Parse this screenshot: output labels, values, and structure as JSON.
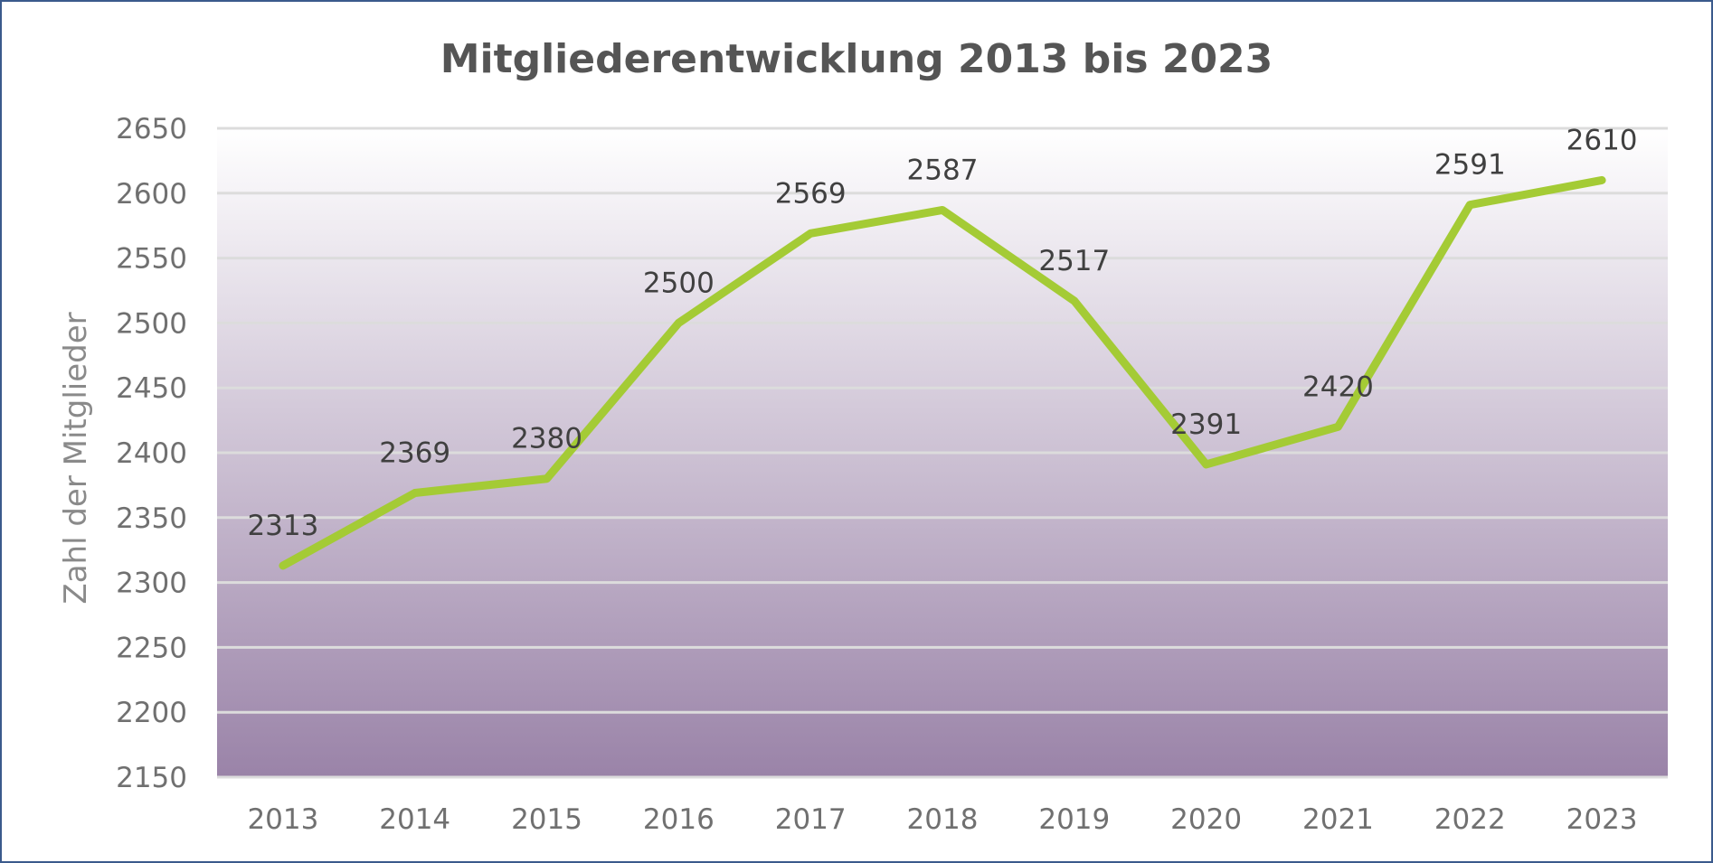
{
  "chart_data": {
    "type": "line",
    "title": "Mitgliederentwicklung 2013 bis 2023",
    "xlabel": "",
    "ylabel": "Zahl der Mitglieder",
    "categories": [
      "2013",
      "2014",
      "2015",
      "2016",
      "2017",
      "2018",
      "2019",
      "2020",
      "2021",
      "2022",
      "2023"
    ],
    "series": [
      {
        "values": [
          2313,
          2369,
          2380,
          2500,
          2569,
          2587,
          2517,
          2391,
          2420,
          2591,
          2610
        ]
      }
    ],
    "data_labels": [
      "2313",
      "2369",
      "2380",
      "2500",
      "2569",
      "2587",
      "2517",
      "2391",
      "2420",
      "2591",
      "2610"
    ],
    "ylim": [
      2150,
      2650
    ],
    "yticks": [
      "2150",
      "2200",
      "2250",
      "2300",
      "2350",
      "2400",
      "2450",
      "2500",
      "2550",
      "2600",
      "2650"
    ],
    "grid": true,
    "legend": "none",
    "colors": {
      "line": "#a4cb35",
      "grid": "#dcdcdc",
      "plot_top": "#ffffff",
      "plot_bottom": "#9a83a8",
      "border": "#3b5a8c"
    }
  }
}
